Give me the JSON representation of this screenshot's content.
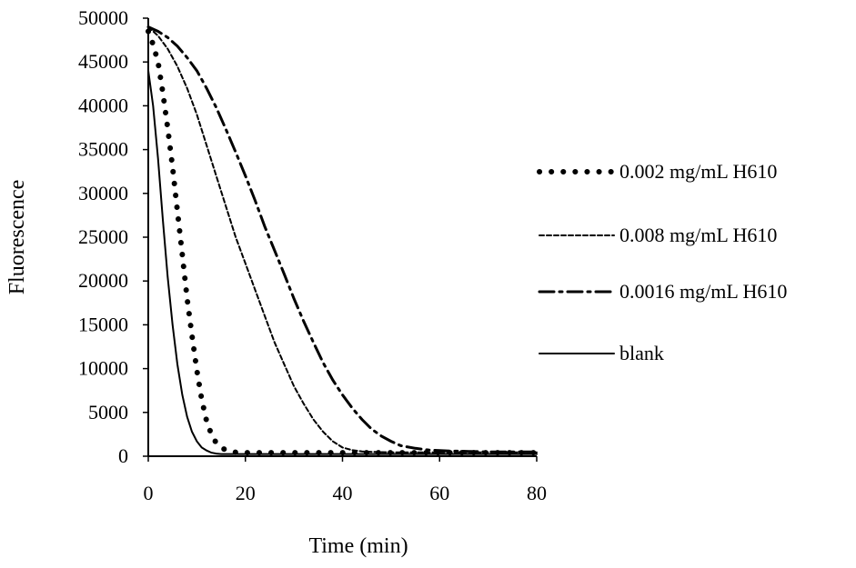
{
  "chart_data": {
    "type": "line",
    "title": "",
    "xlabel": "Time (min)",
    "ylabel": "Fluorescence",
    "xlim": [
      0,
      80
    ],
    "ylim": [
      0,
      50000
    ],
    "xticks": [
      0,
      20,
      40,
      60,
      80
    ],
    "yticks": [
      0,
      5000,
      10000,
      15000,
      20000,
      25000,
      30000,
      35000,
      40000,
      45000,
      50000
    ],
    "grid": false,
    "legend_position": "right",
    "series": [
      {
        "name": "0.002 mg/mL H610",
        "style": "dotted",
        "x": [
          0,
          1,
          2,
          3,
          4,
          5,
          6,
          7,
          8,
          9,
          10,
          11,
          12,
          13,
          14,
          15,
          16,
          17,
          18,
          20,
          22,
          25,
          30,
          40,
          50,
          60,
          70,
          80
        ],
        "y": [
          48500,
          47000,
          45000,
          41500,
          37500,
          33000,
          28000,
          23000,
          18000,
          13800,
          9800,
          6500,
          4000,
          2500,
          1500,
          1000,
          700,
          550,
          450,
          400,
          400,
          400,
          400,
          400,
          400,
          400,
          400,
          400
        ]
      },
      {
        "name": "0.008 mg/mL H610",
        "style": "dashed",
        "x": [
          0,
          2,
          4,
          6,
          8,
          10,
          12,
          14,
          16,
          18,
          20,
          22,
          24,
          26,
          28,
          30,
          32,
          34,
          36,
          38,
          40,
          42,
          44,
          46,
          50,
          55,
          60,
          70,
          80
        ],
        "y": [
          49000,
          48000,
          46500,
          44500,
          42000,
          39000,
          35500,
          32000,
          28500,
          25000,
          22000,
          19000,
          16000,
          13000,
          10500,
          8000,
          6000,
          4200,
          2800,
          1700,
          1000,
          700,
          550,
          500,
          450,
          450,
          450,
          450,
          450
        ]
      },
      {
        "name": "0.0016 mg/mL H610",
        "style": "dash-dot",
        "x": [
          0,
          2,
          4,
          6,
          8,
          10,
          12,
          14,
          16,
          18,
          20,
          22,
          24,
          26,
          28,
          30,
          32,
          34,
          36,
          38,
          40,
          42,
          44,
          46,
          48,
          50,
          52,
          55,
          58,
          62,
          66,
          70,
          80
        ],
        "y": [
          49000,
          48500,
          47800,
          46800,
          45500,
          44000,
          42000,
          39800,
          37300,
          34700,
          32000,
          29200,
          26200,
          23500,
          20800,
          18000,
          15400,
          13000,
          10700,
          8700,
          7000,
          5500,
          4200,
          3100,
          2300,
          1700,
          1200,
          900,
          700,
          600,
          550,
          500,
          500
        ]
      },
      {
        "name": "blank",
        "style": "solid",
        "x": [
          0,
          1,
          2,
          3,
          4,
          5,
          6,
          7,
          8,
          9,
          10,
          11,
          12,
          13,
          14,
          15,
          16,
          18,
          20,
          25,
          30,
          40,
          50,
          60,
          70,
          80
        ],
        "y": [
          44000,
          40000,
          34000,
          27000,
          20500,
          15000,
          10500,
          7000,
          4500,
          2800,
          1700,
          1000,
          650,
          400,
          300,
          250,
          250,
          250,
          250,
          250,
          250,
          250,
          250,
          250,
          250,
          250
        ]
      }
    ]
  }
}
